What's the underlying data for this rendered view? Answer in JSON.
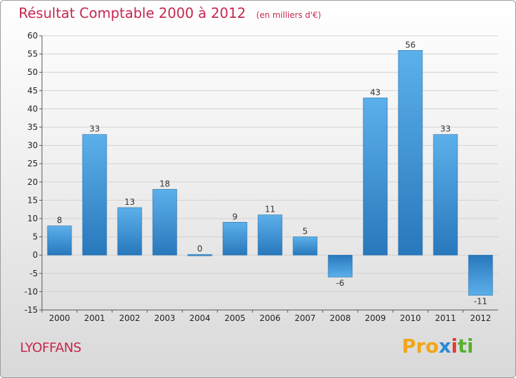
{
  "header": {
    "title": "Résultat Comptable 2000 à 2012",
    "subtitle": "(en milliers d'€)"
  },
  "footer": {
    "commune": "LYOFFANS",
    "logo": [
      "Pro",
      "x",
      "i",
      "ti"
    ]
  },
  "colors": {
    "title": "#c8274f",
    "bar_light": "#5aaee8",
    "bar_dark": "#2a7fc0"
  },
  "chart_data": {
    "type": "bar",
    "title": "Résultat Comptable 2000 à 2012",
    "subtitle": "(en milliers d'€)",
    "categories": [
      "2000",
      "2001",
      "2002",
      "2003",
      "2004",
      "2005",
      "2006",
      "2007",
      "2008",
      "2009",
      "2010",
      "2011",
      "2012"
    ],
    "values": [
      8,
      33,
      13,
      18,
      0,
      9,
      11,
      5,
      -6,
      43,
      56,
      33,
      -11
    ],
    "value_labels": [
      "8",
      "33",
      "13",
      "18",
      "0",
      "9",
      "11",
      "5",
      "-6",
      "43",
      "56",
      "33",
      "-11"
    ],
    "ylim": [
      -15,
      60
    ],
    "yticks": [
      -15,
      -10,
      -5,
      0,
      5,
      10,
      15,
      20,
      25,
      30,
      35,
      40,
      45,
      50,
      55,
      60
    ],
    "grid": true,
    "legend": "none"
  }
}
